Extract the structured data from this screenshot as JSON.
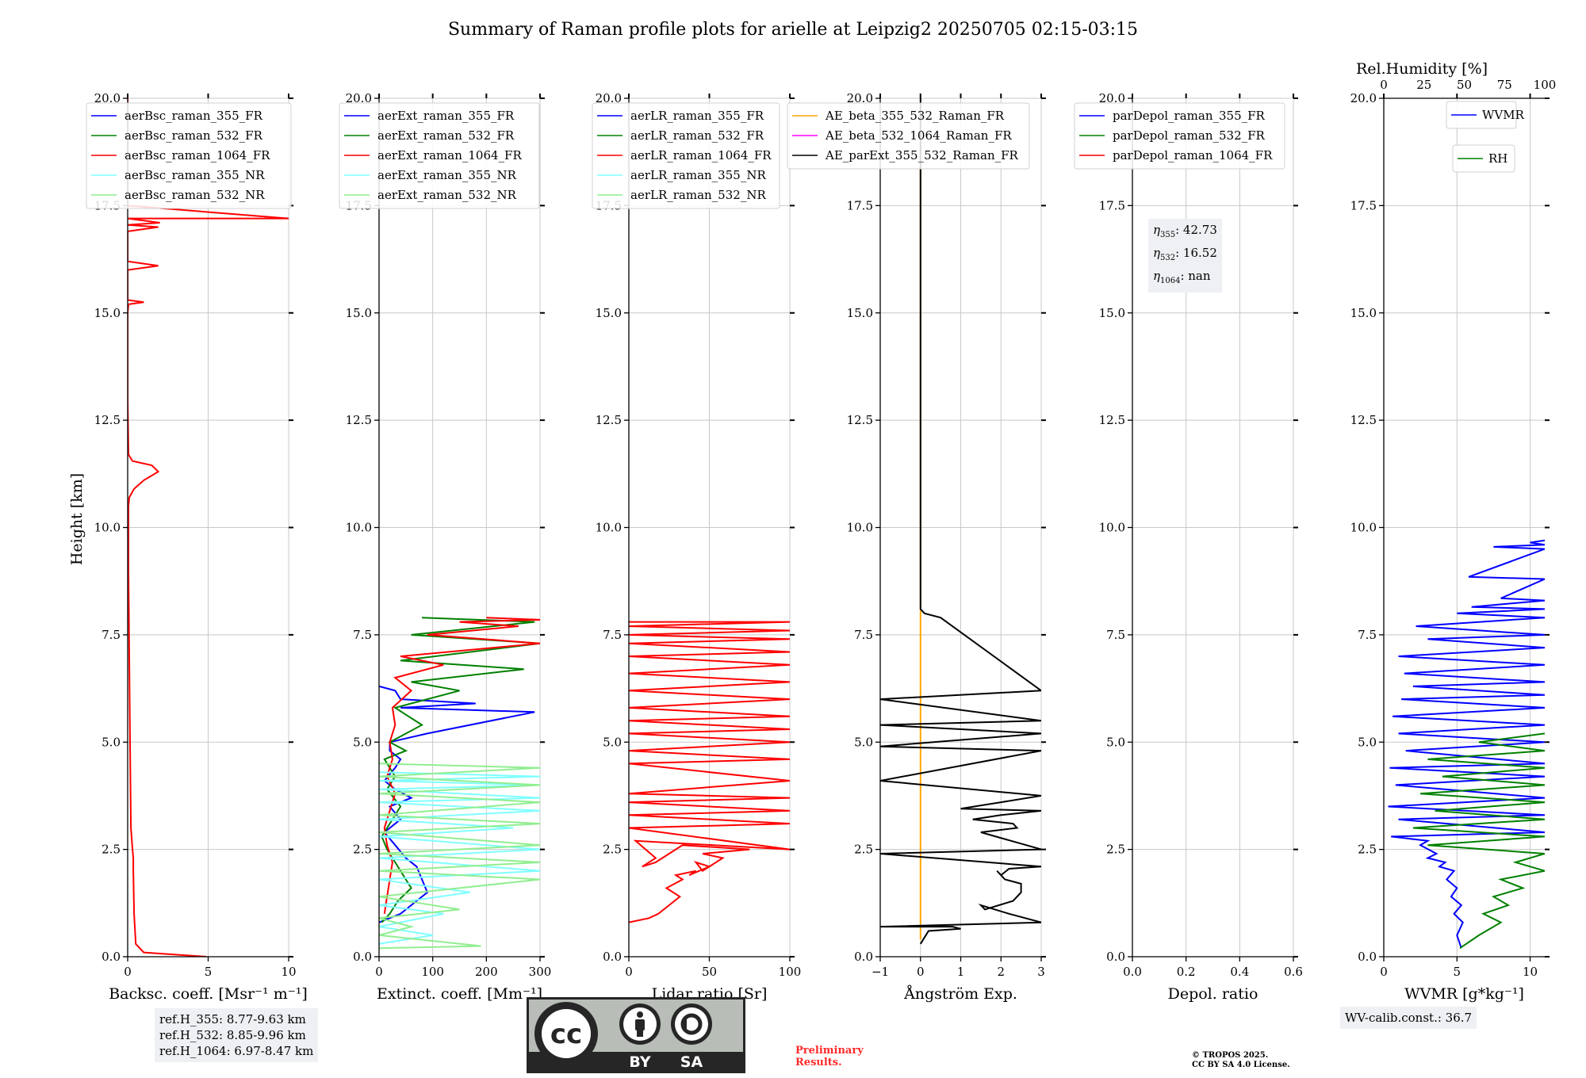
{
  "title": "Summary of Raman profile plots for arielle at Leipzig2 20250705 02:15-03:15",
  "ylabel": "Height [km]",
  "y_ticks": [
    "0.0",
    "2.5",
    "5.0",
    "7.5",
    "10.0",
    "12.5",
    "15.0",
    "17.5",
    "20.0"
  ],
  "ref_heights": [
    "ref.H_355: 8.77-9.63 km",
    "ref.H_532: 8.85-9.96 km",
    "ref.H_1064: 6.97-8.47 km"
  ],
  "eta": {
    "l355_sub": "355",
    "l355_val": ": 42.73",
    "l532_sub": "532",
    "l532_val": ": 16.52",
    "l1064_sub": "1064",
    "l1064_val": ": nan"
  },
  "wv_calib": "WV-calib.const.: 36.7",
  "rh_axis_label": "Rel.Humidity [%]",
  "prelim": "Preliminary\nResults.",
  "copyright": "© TROPOS 2025.\nCC BY SA 4.0 License.",
  "license_badge": {
    "by": "BY",
    "sa": "SA",
    "cc": "cc"
  },
  "colors": {
    "blue": "#0000ff",
    "green": "#008000",
    "red": "#ff0000",
    "cyan": "#80ffff",
    "lightgreen": "#90ee90",
    "orange": "#ffa500",
    "magenta": "#ff00ff",
    "black": "#000000"
  },
  "chart_data": [
    {
      "type": "line",
      "xlabel": "Backsc. coeff. [Msr⁻¹ m⁻¹]",
      "xlim": [
        0,
        10
      ],
      "ylim": [
        0,
        20
      ],
      "x_ticks": [
        "0",
        "5",
        "10"
      ],
      "legend": [
        "aerBsc_raman_355_FR",
        "aerBsc_raman_532_FR",
        "aerBsc_raman_1064_FR",
        "aerBsc_raman_355_NR",
        "aerBsc_raman_532_NR"
      ],
      "legend_colors": [
        "blue",
        "green",
        "red",
        "cyan",
        "lightgreen"
      ],
      "series": [
        {
          "name": "aerBsc_raman_1064_FR",
          "color": "red",
          "x": [
            4.9,
            1.0,
            0.5,
            0.4,
            0.35,
            0.35,
            0.3,
            0.2,
            0.15,
            0.1,
            0.05,
            0.05,
            0.1,
            0.4,
            1.0,
            1.9,
            1.5,
            0.3,
            0.05,
            0.0,
            0.0,
            0.05,
            1.0,
            0.0,
            0.0,
            1.9,
            0.0,
            0.0,
            1.9,
            0.0,
            2.0,
            0.0,
            10.0,
            0.0,
            0.0
          ],
          "y": [
            0.0,
            0.1,
            0.3,
            1.0,
            2.0,
            2.3,
            2.5,
            3.0,
            5.0,
            7.0,
            9.0,
            10.5,
            10.7,
            10.9,
            11.1,
            11.3,
            11.45,
            11.55,
            11.7,
            13.0,
            15.0,
            15.2,
            15.25,
            15.3,
            16.0,
            16.1,
            16.2,
            16.9,
            17.0,
            17.05,
            17.1,
            17.2,
            17.2,
            17.5,
            20.0
          ]
        }
      ]
    },
    {
      "type": "line",
      "xlabel": "Extinct. coeff. [Mm⁻¹]",
      "xlim": [
        0,
        300
      ],
      "ylim": [
        0,
        20
      ],
      "x_ticks": [
        "0",
        "100",
        "200",
        "300"
      ],
      "legend": [
        "aerExt_raman_355_FR",
        "aerExt_raman_532_FR",
        "aerExt_raman_1064_FR",
        "aerExt_raman_355_NR",
        "aerExt_raman_532_NR"
      ],
      "legend_colors": [
        "blue",
        "green",
        "red",
        "cyan",
        "lightgreen"
      ],
      "series": [
        {
          "name": "aerExt_raman_355_FR",
          "color": "blue",
          "x": [
            0,
            40,
            60,
            90,
            80,
            70,
            50,
            30,
            10,
            40,
            20,
            60,
            30,
            10,
            30,
            40,
            20,
            20,
            90,
            290,
            40,
            180,
            40,
            30,
            0
          ],
          "y": [
            0.8,
            1.0,
            1.2,
            1.5,
            1.8,
            2.1,
            2.3,
            2.6,
            2.9,
            3.2,
            3.5,
            3.7,
            3.9,
            4.1,
            4.4,
            4.6,
            4.8,
            5.0,
            5.2,
            5.7,
            5.8,
            5.9,
            6.0,
            6.2,
            6.3
          ]
        },
        {
          "name": "aerExt_raman_532_FR",
          "color": "green",
          "x": [
            5,
            20,
            35,
            60,
            45,
            30,
            15,
            5,
            20,
            40,
            15,
            30,
            10,
            50,
            20,
            80,
            30,
            150,
            60,
            270,
            40,
            300,
            60,
            290,
            80
          ],
          "y": [
            0.8,
            1.0,
            1.3,
            1.6,
            1.9,
            2.2,
            2.5,
            2.8,
            3.1,
            3.5,
            3.9,
            4.2,
            4.6,
            4.8,
            5.0,
            5.4,
            5.8,
            6.2,
            6.4,
            6.7,
            6.9,
            7.3,
            7.5,
            7.8,
            7.9
          ]
        },
        {
          "name": "aerExt_raman_1064_FR",
          "color": "red",
          "x": [
            10,
            15,
            20,
            25,
            15,
            10,
            20,
            30,
            15,
            25,
            20,
            30,
            25,
            60,
            30,
            120,
            40,
            300,
            90,
            260,
            150,
            300,
            200
          ],
          "y": [
            1.0,
            1.4,
            1.8,
            2.2,
            2.6,
            3.0,
            3.4,
            3.8,
            4.2,
            4.6,
            5.0,
            5.4,
            5.8,
            6.2,
            6.5,
            6.8,
            7.0,
            7.3,
            7.5,
            7.7,
            7.8,
            7.85,
            7.9
          ]
        },
        {
          "name": "aerExt_raman_355_NR",
          "color": "cyan",
          "x": [
            0,
            100,
            0,
            120,
            0,
            170,
            0,
            300,
            0,
            300,
            0,
            250,
            0,
            300,
            0,
            300,
            0,
            300,
            0,
            300,
            0
          ],
          "y": [
            0.3,
            0.5,
            0.7,
            1.0,
            1.2,
            1.5,
            1.8,
            2.0,
            2.3,
            2.5,
            2.8,
            3.0,
            3.2,
            3.4,
            3.6,
            3.7,
            3.9,
            4.0,
            4.1,
            4.2,
            4.3
          ]
        },
        {
          "name": "aerExt_raman_532_NR",
          "color": "lightgreen",
          "x": [
            0,
            190,
            0,
            60,
            0,
            150,
            0,
            300,
            0,
            300,
            0,
            300,
            0,
            300,
            0,
            300,
            0,
            300,
            0,
            300,
            0
          ],
          "y": [
            0.2,
            0.25,
            0.5,
            0.7,
            0.9,
            1.1,
            1.4,
            1.8,
            2.0,
            2.2,
            2.4,
            2.6,
            2.9,
            3.1,
            3.3,
            3.6,
            3.8,
            4.0,
            4.2,
            4.4,
            4.5
          ]
        }
      ]
    },
    {
      "type": "line",
      "xlabel": "Lidar ratio [Sr]",
      "xlim": [
        0,
        120
      ],
      "ylim": [
        0,
        20
      ],
      "x_ticks": [
        "0",
        "50",
        "100"
      ],
      "legend": [
        "aerLR_raman_355_FR",
        "aerLR_raman_532_FR",
        "aerLR_raman_1064_FR",
        "aerLR_raman_355_NR",
        "aerLR_raman_532_NR"
      ],
      "legend_colors": [
        "blue",
        "green",
        "red",
        "cyan",
        "lightgreen"
      ],
      "series": [
        {
          "name": "aerLR_raman_1064_FR",
          "color": "red",
          "x": [
            0,
            15,
            22,
            30,
            38,
            28,
            40,
            35,
            50,
            45,
            60,
            50,
            55,
            70,
            55,
            90,
            40,
            20,
            10,
            20,
            5,
            120,
            0,
            120,
            0,
            120,
            0,
            120,
            0,
            120,
            0,
            120,
            0,
            120,
            0,
            120,
            0,
            120,
            0,
            120,
            0,
            120,
            0,
            120,
            0,
            120,
            0,
            120,
            0,
            120,
            0,
            120,
            0
          ],
          "y": [
            0.8,
            0.9,
            1.0,
            1.2,
            1.4,
            1.6,
            1.8,
            1.9,
            2.0,
            1.9,
            2.1,
            2.2,
            2.0,
            2.3,
            2.4,
            2.5,
            2.6,
            2.2,
            2.1,
            2.3,
            2.7,
            2.5,
            3.0,
            3.1,
            3.3,
            3.4,
            3.6,
            3.7,
            3.8,
            4.1,
            4.5,
            4.6,
            4.8,
            5.0,
            5.2,
            5.3,
            5.5,
            5.6,
            5.8,
            6.0,
            6.2,
            6.4,
            6.6,
            6.8,
            7.0,
            7.1,
            7.3,
            7.4,
            7.5,
            7.6,
            7.7,
            7.8,
            7.8
          ]
        }
      ]
    },
    {
      "type": "line",
      "xlabel": "Ångström Exp.",
      "xlim": [
        -1,
        3
      ],
      "ylim": [
        0,
        20
      ],
      "x_ticks": [
        "−1",
        "0",
        "1",
        "2",
        "3"
      ],
      "legend": [
        "AE_beta_355_532_Raman_FR",
        "AE_beta_532_1064_Raman_FR",
        "AE_parExt_355_532_Raman_FR"
      ],
      "legend_colors": [
        "orange",
        "magenta",
        "black"
      ],
      "series": [
        {
          "name": "AE_beta_355_532_Raman_FR",
          "color": "orange",
          "x": [
            0,
            0
          ],
          "y": [
            0.4,
            19.0
          ]
        },
        {
          "name": "AE_parExt_355_532_Raman_FR",
          "color": "black",
          "x": [
            0,
            0.2,
            1.0,
            0.8,
            -1,
            3,
            2.2,
            1.5,
            1.6,
            2.3,
            2.5,
            2.5,
            2.1,
            1.9,
            2.0,
            2.2,
            3,
            -1,
            3,
            1.5,
            2.4,
            2.3,
            1.3,
            2.0,
            3.0,
            1.0,
            2.0,
            3.0,
            -1,
            3,
            -1,
            3,
            -1,
            3,
            -1,
            3,
            0.5,
            0.1,
            0,
            0
          ],
          "y": [
            0.3,
            0.6,
            0.65,
            0.7,
            0.7,
            0.8,
            1.0,
            1.2,
            1.1,
            1.3,
            1.5,
            1.7,
            1.8,
            2.0,
            1.9,
            2.05,
            2.1,
            2.4,
            2.5,
            2.9,
            3.0,
            3.1,
            3.2,
            3.3,
            3.4,
            3.45,
            3.6,
            3.75,
            4.1,
            4.8,
            4.9,
            5.2,
            5.4,
            5.5,
            6.0,
            6.2,
            7.9,
            8.0,
            8.1,
            20.0
          ]
        }
      ]
    },
    {
      "type": "line",
      "xlabel": "Depol. ratio",
      "xlim": [
        0,
        0.6
      ],
      "ylim": [
        0,
        20
      ],
      "x_ticks": [
        "0.0",
        "0.2",
        "0.4",
        "0.6"
      ],
      "legend": [
        "parDepol_raman_355_FR",
        "parDepol_raman_532_FR",
        "parDepol_raman_1064_FR"
      ],
      "legend_colors": [
        "blue",
        "green",
        "red"
      ],
      "series": []
    },
    {
      "type": "line",
      "xlabel": "WVMR [g*kg⁻¹]",
      "xlim": [
        0,
        11
      ],
      "ylim": [
        0,
        20
      ],
      "x_ticks": [
        "0",
        "5",
        "10"
      ],
      "x2_label": "Rel.Humidity [%]",
      "x2lim": [
        0,
        100
      ],
      "x2_ticks": [
        "0",
        "25",
        "50",
        "75",
        "100"
      ],
      "legend": [
        "WVMR",
        "RH"
      ],
      "legend_colors": [
        "blue",
        "green"
      ],
      "series": [
        {
          "name": "WVMR",
          "color": "blue",
          "x": [
            5.3,
            5.0,
            5.4,
            4.8,
            5.3,
            4.6,
            5.0,
            4.3,
            4.8,
            3.8,
            4.2,
            3.0,
            3.6,
            2.5,
            3.0,
            0.5,
            11,
            1.0,
            11,
            0.3,
            11,
            0.8,
            11,
            0.4,
            11,
            1.5,
            11,
            1.0,
            11,
            0.6,
            11,
            1.2,
            11,
            2.0,
            11,
            1.4,
            11,
            1.0,
            11,
            3.0,
            11,
            2.2,
            11,
            5.0,
            11,
            6.0,
            11,
            8.0,
            11,
            5.8,
            11,
            7.5,
            11,
            10.0,
            11
          ],
          "y": [
            0.2,
            0.5,
            0.8,
            1.0,
            1.2,
            1.4,
            1.6,
            1.8,
            2.0,
            2.1,
            2.2,
            2.3,
            2.4,
            2.6,
            2.7,
            2.8,
            2.9,
            3.2,
            3.3,
            3.5,
            3.7,
            4.0,
            4.2,
            4.4,
            4.5,
            4.8,
            5.0,
            5.2,
            5.4,
            5.6,
            5.8,
            6.0,
            6.1,
            6.3,
            6.4,
            6.6,
            6.8,
            7.0,
            7.2,
            7.4,
            7.5,
            7.7,
            7.9,
            8.0,
            8.1,
            8.15,
            8.3,
            8.35,
            8.8,
            8.85,
            9.5,
            9.55,
            9.6,
            9.65,
            9.7
          ]
        },
        {
          "name": "RH",
          "color": "green",
          "x": [
            5.2,
            6.5,
            8.0,
            6.8,
            8.5,
            7.5,
            9.5,
            8.0,
            11,
            9.0,
            11,
            3.0,
            11,
            2.0,
            11,
            3.5,
            11,
            2.5,
            11,
            4.0,
            11,
            3.0,
            11,
            6.5,
            11
          ],
          "y": [
            0.2,
            0.5,
            0.8,
            1.0,
            1.2,
            1.4,
            1.6,
            1.8,
            2.0,
            2.2,
            2.4,
            2.6,
            2.8,
            3.0,
            3.2,
            3.4,
            3.6,
            3.8,
            4.0,
            4.2,
            4.4,
            4.6,
            4.8,
            5.0,
            5.2
          ]
        }
      ]
    }
  ]
}
